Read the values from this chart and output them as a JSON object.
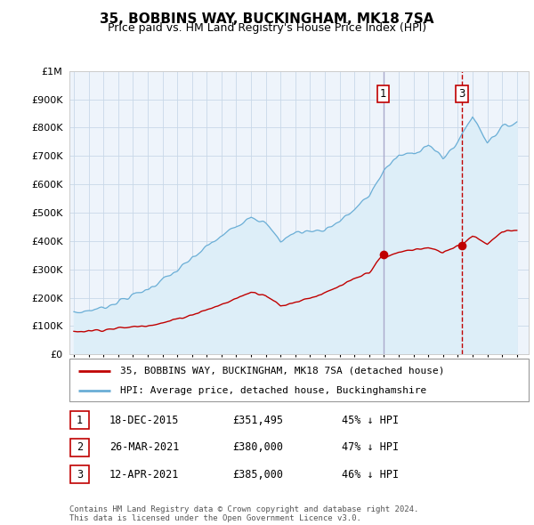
{
  "title": "35, BOBBINS WAY, BUCKINGHAM, MK18 7SA",
  "subtitle": "Price paid vs. HM Land Registry's House Price Index (HPI)",
  "ytick_values": [
    0,
    100000,
    200000,
    300000,
    400000,
    500000,
    600000,
    700000,
    800000,
    900000,
    1000000
  ],
  "ylim": [
    0,
    1000000
  ],
  "hpi_color": "#6aaed6",
  "hpi_fill_color": "#ddeef8",
  "price_color": "#c00000",
  "marker1_date": 2015.96,
  "marker2_date": 2021.22,
  "marker3_date": 2021.28,
  "marker1_price": 351495,
  "marker2_price": 380000,
  "marker3_price": 385000,
  "vline1_color": "#aaaacc",
  "vline3_color": "#c00000",
  "legend_label1": "35, BOBBINS WAY, BUCKINGHAM, MK18 7SA (detached house)",
  "legend_label2": "HPI: Average price, detached house, Buckinghamshire",
  "table_rows": [
    {
      "num": "1",
      "date": "18-DEC-2015",
      "price": "£351,495",
      "pct": "45% ↓ HPI"
    },
    {
      "num": "2",
      "date": "26-MAR-2021",
      "price": "£380,000",
      "pct": "47% ↓ HPI"
    },
    {
      "num": "3",
      "date": "12-APR-2021",
      "price": "£385,000",
      "pct": "46% ↓ HPI"
    }
  ],
  "footnote": "Contains HM Land Registry data © Crown copyright and database right 2024.\nThis data is licensed under the Open Government Licence v3.0.",
  "background_color": "#ffffff",
  "plot_bg_color": "#eef4fb",
  "grid_color": "#c8d8e8"
}
